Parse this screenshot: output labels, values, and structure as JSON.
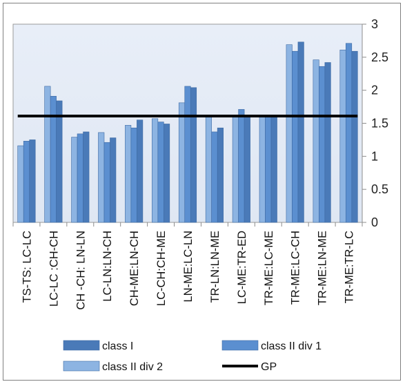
{
  "chart_data": {
    "type": "bar",
    "categories": [
      "TS-TS: LC-LC",
      "LC-LC :CH-CH",
      "CH -CH: LN-LN",
      "LC-LN:LN-CH",
      "CH-ME:LN-CH",
      "LC-CH:CH-ME",
      "LN-ME:LC-LN",
      "TR-LN:LN-ME",
      "LC-ME:TR-ED",
      "TR-ME:LC-ME",
      "TR-ME:LC-CH",
      "TR-ME:LN-ME",
      "TR-ME:TR-LC"
    ],
    "series": [
      {
        "name": "class II div 2",
        "color": "#8db4e2",
        "values": [
          1.16,
          2.06,
          1.29,
          1.36,
          1.47,
          1.57,
          1.81,
          1.61,
          1.61,
          1.62,
          2.69,
          2.46,
          2.61
        ]
      },
      {
        "name": "class II div 1",
        "color": "#5b8fd0",
        "values": [
          1.23,
          1.91,
          1.34,
          1.21,
          1.43,
          1.52,
          2.06,
          1.37,
          1.71,
          1.62,
          2.59,
          2.36,
          2.71
        ]
      },
      {
        "name": "class I",
        "color": "#4a7ab8",
        "values": [
          1.25,
          1.84,
          1.37,
          1.28,
          1.55,
          1.49,
          2.04,
          1.43,
          1.6,
          1.62,
          2.73,
          2.42,
          2.59
        ]
      }
    ],
    "reference_line": {
      "name": "GP",
      "value": 1.61,
      "color": "#000000"
    },
    "ylim": [
      0,
      3
    ],
    "yticks": [
      "0",
      "0.5",
      "1",
      "1.5",
      "2",
      "2.5",
      "3"
    ],
    "y_axis_side": "right",
    "grid": false,
    "legend": {
      "placement": "bottom",
      "items": [
        {
          "label": "class I",
          "kind": "bar",
          "color": "#4a7ab8"
        },
        {
          "label": "class II div 1",
          "kind": "bar",
          "color": "#5b8fd0"
        },
        {
          "label": "class II div 2",
          "kind": "bar",
          "color": "#8db4e2"
        },
        {
          "label": "GP",
          "kind": "line",
          "color": "#000000"
        }
      ]
    }
  }
}
